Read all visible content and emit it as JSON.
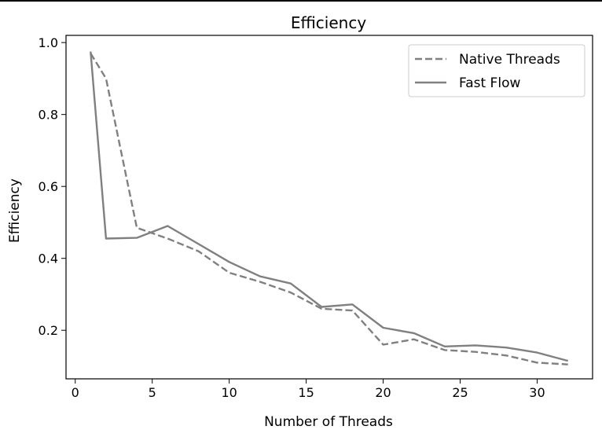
{
  "chart_data": {
    "type": "line",
    "title": "Efficiency",
    "xlabel": "Number of Threads",
    "ylabel": "Efficiency",
    "xlim": [
      -0.6,
      33.6
    ],
    "ylim": [
      0.065,
      1.02
    ],
    "xticks": [
      0,
      5,
      10,
      15,
      20,
      25,
      30
    ],
    "yticks": [
      0.2,
      0.4,
      0.6,
      0.8,
      1.0
    ],
    "ytick_labels": [
      "0.2",
      "0.4",
      "0.6",
      "0.8",
      "1.0"
    ],
    "grid": false,
    "legend_position": "top-right",
    "series": [
      {
        "name": "Native Threads",
        "style": "dashed",
        "color": "#808080",
        "x": [
          1,
          2,
          4,
          6,
          8,
          10,
          12,
          14,
          16,
          18,
          20,
          22,
          24,
          26,
          28,
          30,
          32
        ],
        "y": [
          0.97,
          0.9,
          0.485,
          0.455,
          0.42,
          0.36,
          0.335,
          0.305,
          0.26,
          0.255,
          0.16,
          0.175,
          0.145,
          0.14,
          0.13,
          0.11,
          0.105
        ]
      },
      {
        "name": "Fast Flow",
        "style": "solid",
        "color": "#808080",
        "x": [
          1,
          2,
          4,
          6,
          8,
          10,
          12,
          14,
          16,
          18,
          20,
          22,
          24,
          26,
          28,
          30,
          32
        ],
        "y": [
          0.975,
          0.455,
          0.457,
          0.49,
          0.44,
          0.39,
          0.35,
          0.33,
          0.265,
          0.272,
          0.207,
          0.192,
          0.155,
          0.158,
          0.152,
          0.138,
          0.115
        ]
      }
    ]
  }
}
